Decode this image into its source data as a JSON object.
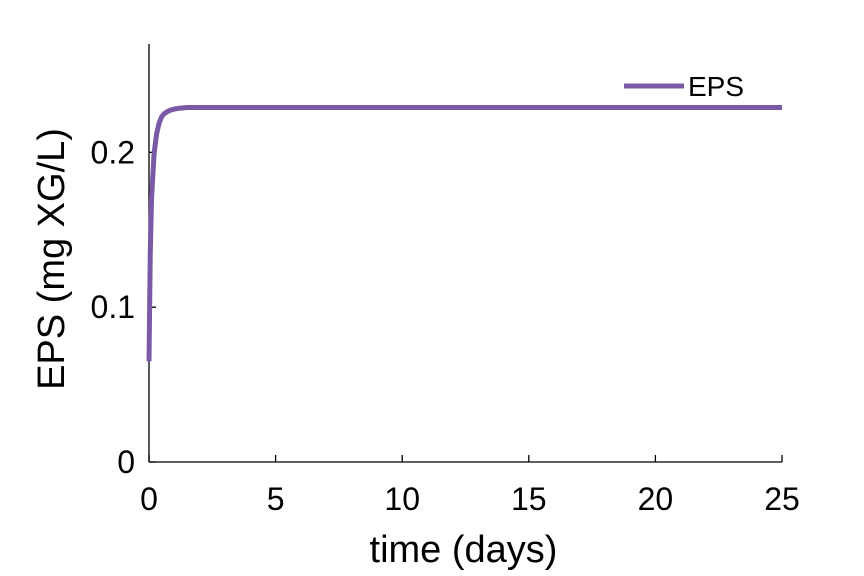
{
  "chart_data": {
    "type": "line",
    "title": "",
    "xlabel": "time (days)",
    "ylabel": "EPS (mg XG/L)",
    "xlim": [
      0,
      25
    ],
    "ylim": [
      0,
      0.27
    ],
    "xticks": [
      0,
      5,
      10,
      15,
      20,
      25
    ],
    "xtick_labels": [
      "0",
      "5",
      "10",
      "15",
      "20",
      "25"
    ],
    "yticks": [
      0,
      0.1,
      0.2
    ],
    "ytick_labels": [
      "0",
      "0.1",
      "0.2"
    ],
    "grid": false,
    "legend_position": "top-right",
    "series": [
      {
        "name": "EPS",
        "color": "#7a59a6",
        "x": [
          0,
          0.05,
          0.1,
          0.2,
          0.3,
          0.4,
          0.5,
          0.6,
          0.8,
          1.0,
          1.2,
          1.5,
          2,
          3,
          5,
          10,
          15,
          20,
          25
        ],
        "y": [
          0.065,
          0.135,
          0.17,
          0.199,
          0.212,
          0.219,
          0.223,
          0.225,
          0.227,
          0.228,
          0.2285,
          0.229,
          0.229,
          0.229,
          0.229,
          0.229,
          0.229,
          0.229,
          0.229
        ]
      }
    ]
  }
}
